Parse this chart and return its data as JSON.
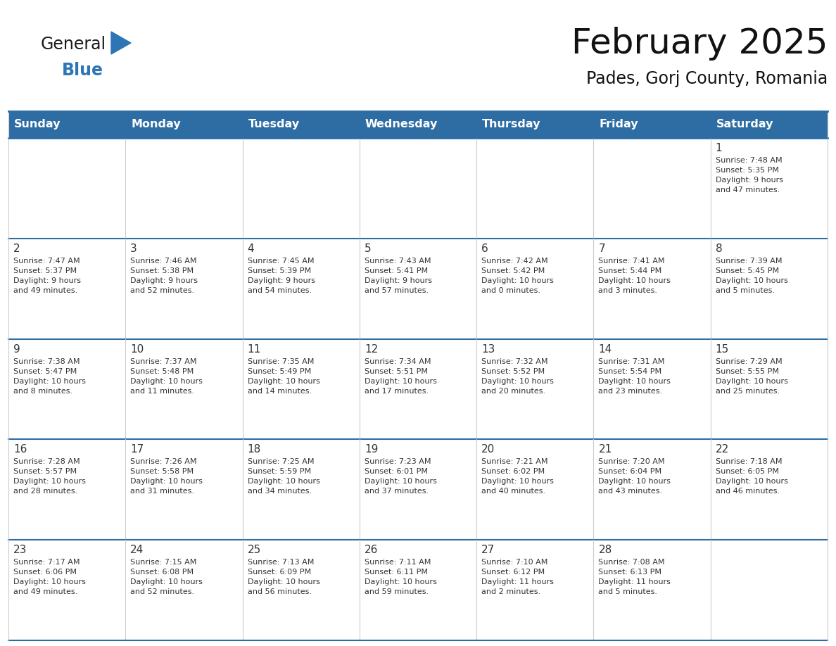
{
  "title": "February 2025",
  "subtitle": "Pades, Gorj County, Romania",
  "header_bg": "#2E6DA4",
  "header_text": "#FFFFFF",
  "cell_bg": "#FFFFFF",
  "row_sep_color": "#2E6DA4",
  "col_sep_color": "#cccccc",
  "text_color": "#333333",
  "day_number_color": "#333333",
  "day_headers": [
    "Sunday",
    "Monday",
    "Tuesday",
    "Wednesday",
    "Thursday",
    "Friday",
    "Saturday"
  ],
  "weeks": [
    [
      {
        "day": "",
        "info": ""
      },
      {
        "day": "",
        "info": ""
      },
      {
        "day": "",
        "info": ""
      },
      {
        "day": "",
        "info": ""
      },
      {
        "day": "",
        "info": ""
      },
      {
        "day": "",
        "info": ""
      },
      {
        "day": "1",
        "info": "Sunrise: 7:48 AM\nSunset: 5:35 PM\nDaylight: 9 hours\nand 47 minutes."
      }
    ],
    [
      {
        "day": "2",
        "info": "Sunrise: 7:47 AM\nSunset: 5:37 PM\nDaylight: 9 hours\nand 49 minutes."
      },
      {
        "day": "3",
        "info": "Sunrise: 7:46 AM\nSunset: 5:38 PM\nDaylight: 9 hours\nand 52 minutes."
      },
      {
        "day": "4",
        "info": "Sunrise: 7:45 AM\nSunset: 5:39 PM\nDaylight: 9 hours\nand 54 minutes."
      },
      {
        "day": "5",
        "info": "Sunrise: 7:43 AM\nSunset: 5:41 PM\nDaylight: 9 hours\nand 57 minutes."
      },
      {
        "day": "6",
        "info": "Sunrise: 7:42 AM\nSunset: 5:42 PM\nDaylight: 10 hours\nand 0 minutes."
      },
      {
        "day": "7",
        "info": "Sunrise: 7:41 AM\nSunset: 5:44 PM\nDaylight: 10 hours\nand 3 minutes."
      },
      {
        "day": "8",
        "info": "Sunrise: 7:39 AM\nSunset: 5:45 PM\nDaylight: 10 hours\nand 5 minutes."
      }
    ],
    [
      {
        "day": "9",
        "info": "Sunrise: 7:38 AM\nSunset: 5:47 PM\nDaylight: 10 hours\nand 8 minutes."
      },
      {
        "day": "10",
        "info": "Sunrise: 7:37 AM\nSunset: 5:48 PM\nDaylight: 10 hours\nand 11 minutes."
      },
      {
        "day": "11",
        "info": "Sunrise: 7:35 AM\nSunset: 5:49 PM\nDaylight: 10 hours\nand 14 minutes."
      },
      {
        "day": "12",
        "info": "Sunrise: 7:34 AM\nSunset: 5:51 PM\nDaylight: 10 hours\nand 17 minutes."
      },
      {
        "day": "13",
        "info": "Sunrise: 7:32 AM\nSunset: 5:52 PM\nDaylight: 10 hours\nand 20 minutes."
      },
      {
        "day": "14",
        "info": "Sunrise: 7:31 AM\nSunset: 5:54 PM\nDaylight: 10 hours\nand 23 minutes."
      },
      {
        "day": "15",
        "info": "Sunrise: 7:29 AM\nSunset: 5:55 PM\nDaylight: 10 hours\nand 25 minutes."
      }
    ],
    [
      {
        "day": "16",
        "info": "Sunrise: 7:28 AM\nSunset: 5:57 PM\nDaylight: 10 hours\nand 28 minutes."
      },
      {
        "day": "17",
        "info": "Sunrise: 7:26 AM\nSunset: 5:58 PM\nDaylight: 10 hours\nand 31 minutes."
      },
      {
        "day": "18",
        "info": "Sunrise: 7:25 AM\nSunset: 5:59 PM\nDaylight: 10 hours\nand 34 minutes."
      },
      {
        "day": "19",
        "info": "Sunrise: 7:23 AM\nSunset: 6:01 PM\nDaylight: 10 hours\nand 37 minutes."
      },
      {
        "day": "20",
        "info": "Sunrise: 7:21 AM\nSunset: 6:02 PM\nDaylight: 10 hours\nand 40 minutes."
      },
      {
        "day": "21",
        "info": "Sunrise: 7:20 AM\nSunset: 6:04 PM\nDaylight: 10 hours\nand 43 minutes."
      },
      {
        "day": "22",
        "info": "Sunrise: 7:18 AM\nSunset: 6:05 PM\nDaylight: 10 hours\nand 46 minutes."
      }
    ],
    [
      {
        "day": "23",
        "info": "Sunrise: 7:17 AM\nSunset: 6:06 PM\nDaylight: 10 hours\nand 49 minutes."
      },
      {
        "day": "24",
        "info": "Sunrise: 7:15 AM\nSunset: 6:08 PM\nDaylight: 10 hours\nand 52 minutes."
      },
      {
        "day": "25",
        "info": "Sunrise: 7:13 AM\nSunset: 6:09 PM\nDaylight: 10 hours\nand 56 minutes."
      },
      {
        "day": "26",
        "info": "Sunrise: 7:11 AM\nSunset: 6:11 PM\nDaylight: 10 hours\nand 59 minutes."
      },
      {
        "day": "27",
        "info": "Sunrise: 7:10 AM\nSunset: 6:12 PM\nDaylight: 11 hours\nand 2 minutes."
      },
      {
        "day": "28",
        "info": "Sunrise: 7:08 AM\nSunset: 6:13 PM\nDaylight: 11 hours\nand 5 minutes."
      },
      {
        "day": "",
        "info": ""
      }
    ]
  ],
  "logo_text_general": "General",
  "logo_text_blue": "Blue",
  "logo_color_general": "#1a1a1a",
  "logo_color_blue": "#2E75B6",
  "logo_triangle_color": "#2E75B6",
  "title_fontsize": 36,
  "subtitle_fontsize": 17,
  "header_fontsize": 11.5,
  "day_num_fontsize": 11,
  "info_fontsize": 8.0
}
